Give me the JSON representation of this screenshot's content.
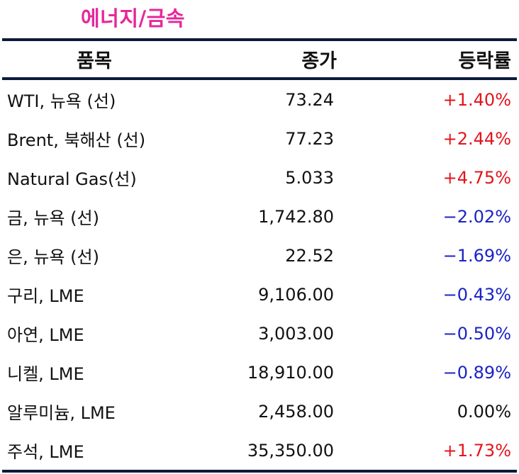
{
  "title": "에너지/금속",
  "header": {
    "item": "품목",
    "close": "종가",
    "change": "등락률"
  },
  "rows": [
    {
      "name": "WTI, 뉴욕 (선)",
      "close": "73.24",
      "change": "+1.40%",
      "direction": "up"
    },
    {
      "name": "Brent, 북해산 (선)",
      "close": "77.23",
      "change": "+2.44%",
      "direction": "up"
    },
    {
      "name": "Natural Gas(선)",
      "close": "5.033",
      "change": "+4.75%",
      "direction": "up"
    },
    {
      "name": "금, 뉴욕  (선)",
      "close": "1,742.80",
      "change": "−2.02%",
      "direction": "down"
    },
    {
      "name": "은, 뉴욕  (선)",
      "close": "22.52",
      "change": "−1.69%",
      "direction": "down"
    },
    {
      "name": "구리, LME",
      "close": "9,106.00",
      "change": "−0.43%",
      "direction": "down"
    },
    {
      "name": "아연, LME",
      "close": "3,003.00",
      "change": "−0.50%",
      "direction": "down"
    },
    {
      "name": "니켈, LME",
      "close": "18,910.00",
      "change": "−0.89%",
      "direction": "down"
    },
    {
      "name": "알루미늄, LME",
      "close": "2,458.00",
      "change": "0.00%",
      "direction": "flat"
    },
    {
      "name": "주석, LME",
      "close": "35,350.00",
      "change": "+1.73%",
      "direction": "up"
    }
  ],
  "colors": {
    "title": "#e6289a",
    "rule": "#0c1a3a",
    "up": "#e3141c",
    "down": "#1a23c4",
    "flat": "#111111"
  }
}
